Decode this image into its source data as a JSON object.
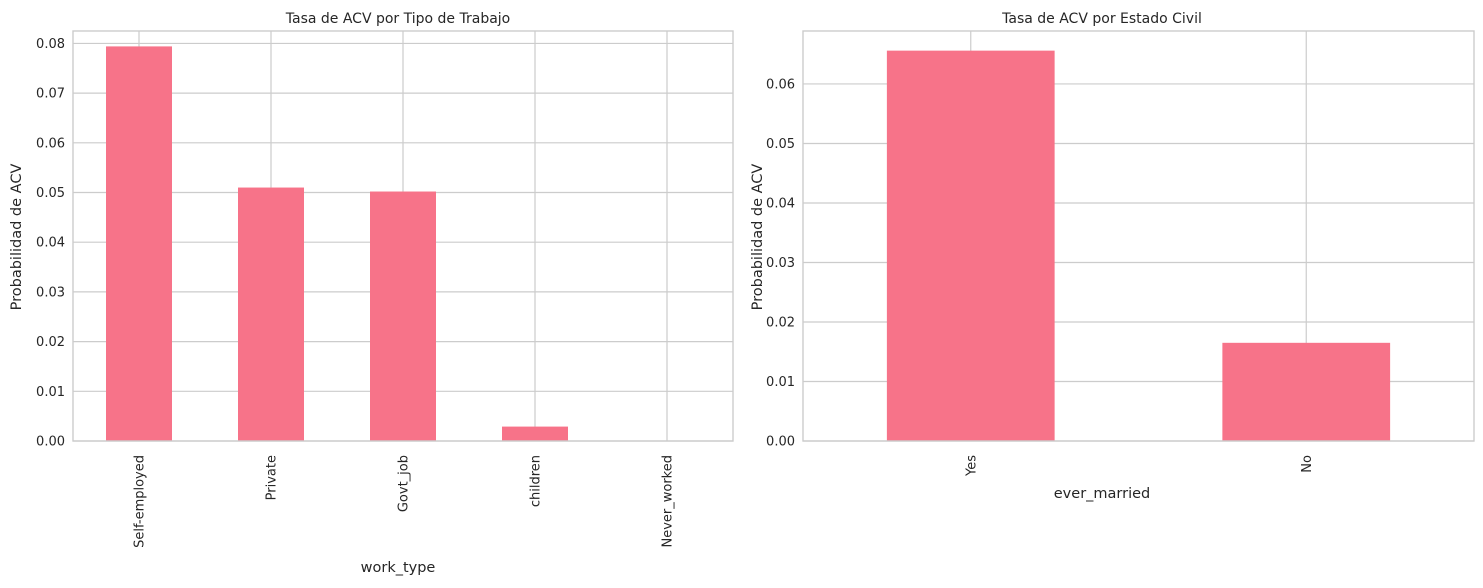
{
  "figure": {
    "bar_color": "#f77389",
    "background": "#ffffff",
    "grid_color": "#cccccc"
  },
  "chart_data": [
    {
      "type": "bar",
      "title": "Tasa de ACV por Tipo de Trabajo",
      "xlabel": "work_type",
      "ylabel": "Probabilidad de ACV",
      "categories": [
        "Self-employed",
        "Private",
        "Govt_job",
        "children",
        "Never_worked"
      ],
      "values": [
        0.0794,
        0.051,
        0.0502,
        0.0029,
        0.0
      ],
      "ylim": [
        0,
        0.0825
      ],
      "yticks": [
        0.0,
        0.01,
        0.02,
        0.03,
        0.04,
        0.05,
        0.06,
        0.07,
        0.08
      ],
      "ytick_labels": [
        "0.00",
        "0.01",
        "0.02",
        "0.03",
        "0.04",
        "0.05",
        "0.06",
        "0.07",
        "0.08"
      ],
      "grid": true,
      "legend": "none"
    },
    {
      "type": "bar",
      "title": "Tasa de ACV por Estado Civil",
      "xlabel": "ever_married",
      "ylabel": "Probabilidad de ACV",
      "categories": [
        "Yes",
        "No"
      ],
      "values": [
        0.0656,
        0.0165
      ],
      "ylim": [
        0,
        0.0689
      ],
      "yticks": [
        0.0,
        0.01,
        0.02,
        0.03,
        0.04,
        0.05,
        0.06
      ],
      "ytick_labels": [
        "0.00",
        "0.01",
        "0.02",
        "0.03",
        "0.04",
        "0.05",
        "0.06"
      ],
      "grid": true,
      "legend": "none"
    }
  ]
}
